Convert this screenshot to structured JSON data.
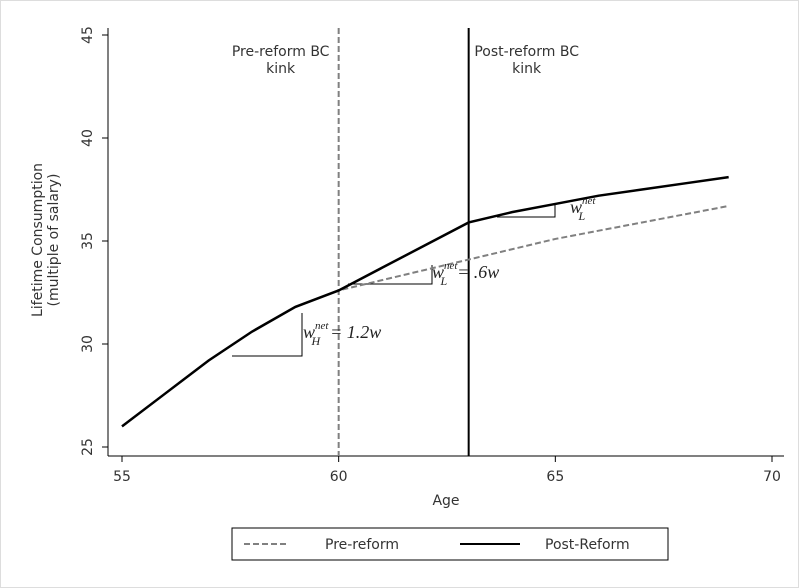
{
  "chart_data": {
    "type": "line",
    "x": [
      55,
      56,
      57,
      58,
      59,
      60,
      61,
      62,
      63,
      64,
      65,
      66,
      67,
      68,
      69
    ],
    "series": [
      {
        "name": "Pre-reform",
        "color": "#808080",
        "dash": true,
        "values": [
          26,
          27.6,
          29.2,
          30.6,
          31.8,
          32.6,
          33.1,
          33.6,
          34.1,
          34.6,
          35.1,
          35.5,
          35.9,
          36.3,
          36.7
        ]
      },
      {
        "name": "Post-Reform",
        "color": "#000000",
        "dash": false,
        "values": [
          26,
          27.6,
          29.2,
          30.6,
          31.8,
          32.6,
          33.7,
          34.8,
          35.9,
          36.4,
          36.8,
          37.2,
          37.5,
          37.8,
          38.1
        ]
      }
    ],
    "xlabel": "Age",
    "ylabel": [
      "Lifetime Consumption",
      "(multiple of salary)"
    ],
    "xlim": [
      55,
      70
    ],
    "xticks": [
      55,
      60,
      65,
      70
    ],
    "ylim": [
      25,
      45
    ],
    "yticks": [
      25,
      30,
      35,
      40,
      45
    ],
    "vlines": [
      {
        "x": 60,
        "color": "#808080",
        "dash": true,
        "label": [
          "Pre-reform BC",
          "kink"
        ]
      },
      {
        "x": 63,
        "color": "#000000",
        "dash": false,
        "label": [
          "Post-reform BC",
          "kink"
        ]
      }
    ],
    "slope_labels": [
      {
        "base": "w",
        "sub": "H",
        "sup": "net",
        "rest": "= 1.2w"
      },
      {
        "base": "w",
        "sub": "L",
        "sup": "net",
        "rest": "= .6w"
      },
      {
        "base": "w",
        "sub": "L",
        "sup": "net"
      }
    ],
    "legend": "bottom"
  }
}
